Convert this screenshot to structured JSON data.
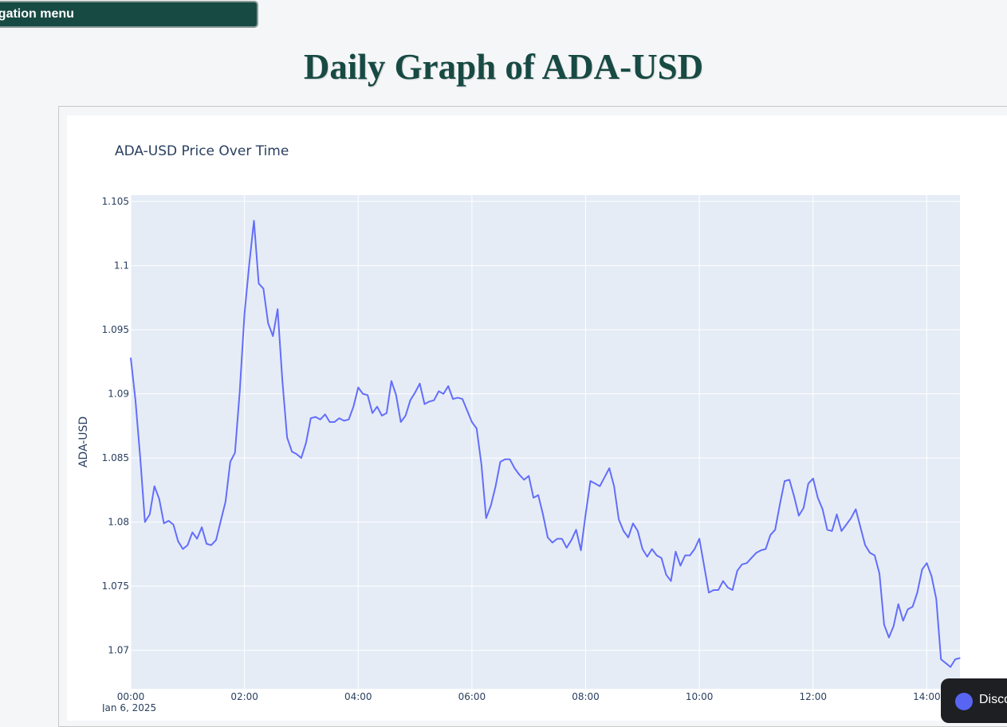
{
  "nav": {
    "label": "Navigation menu"
  },
  "page": {
    "title": "Daily Graph of ADA-USD"
  },
  "discord": {
    "label": "Discord"
  },
  "colors": {
    "line": "#636efa",
    "plot_bg": "#e5ecf6",
    "title": "#174a43"
  },
  "chart_data": {
    "type": "line",
    "title": "ADA-USD Price Over Time",
    "xlabel": "",
    "ylabel": "ADA-USD",
    "x_tick_labels": [
      "00:00",
      "02:00",
      "04:00",
      "06:00",
      "08:00",
      "10:00",
      "12:00",
      "14:00"
    ],
    "x_tick_sublabel": "Jan 6, 2025",
    "x_range_minutes": [
      0,
      875
    ],
    "y_ticks": [
      "1.07",
      "1.075",
      "1.08",
      "1.085",
      "1.09",
      "1.095",
      "1.1",
      "1.105"
    ],
    "ylim": [
      1.067,
      1.1055
    ],
    "grid": true,
    "series": [
      {
        "x": [
          "00:00",
          "00:05",
          "00:10",
          "00:15",
          "00:20",
          "00:25",
          "00:30",
          "00:35",
          "00:40",
          "00:45",
          "00:50",
          "00:55",
          "01:00",
          "01:05",
          "01:10",
          "01:15",
          "01:20",
          "01:25",
          "01:30",
          "01:35",
          "01:40",
          "01:45",
          "01:50",
          "01:55",
          "02:00",
          "02:05",
          "02:10",
          "02:15",
          "02:20",
          "02:25",
          "02:30",
          "02:35",
          "02:40",
          "02:45",
          "02:50",
          "02:55",
          "03:00",
          "03:05",
          "03:10",
          "03:15",
          "03:20",
          "03:25",
          "03:30",
          "03:35",
          "03:40",
          "03:45",
          "03:50",
          "03:55",
          "04:00",
          "04:05",
          "04:10",
          "04:15",
          "04:20",
          "04:25",
          "04:30",
          "04:35",
          "04:40",
          "04:45",
          "04:50",
          "04:55",
          "05:00",
          "05:05",
          "05:10",
          "05:15",
          "05:20",
          "05:25",
          "05:30",
          "05:35",
          "05:40",
          "05:45",
          "05:50",
          "05:55",
          "06:00",
          "06:05",
          "06:10",
          "06:15",
          "06:20",
          "06:25",
          "06:30",
          "06:35",
          "06:40",
          "06:45",
          "06:50",
          "06:55",
          "07:00",
          "07:05",
          "07:10",
          "07:15",
          "07:20",
          "07:25",
          "07:30",
          "07:35",
          "07:40",
          "07:45",
          "07:50",
          "07:55",
          "08:00",
          "08:05",
          "08:10",
          "08:15",
          "08:20",
          "08:25",
          "08:30",
          "08:35",
          "08:40",
          "08:45",
          "08:50",
          "08:55",
          "09:00",
          "09:05",
          "09:10",
          "09:15",
          "09:20",
          "09:25",
          "09:30",
          "09:35",
          "09:40",
          "09:45",
          "09:50",
          "09:55",
          "10:00",
          "10:05",
          "10:10",
          "10:15",
          "10:20",
          "10:25",
          "10:30",
          "10:35",
          "10:40",
          "10:45",
          "10:50",
          "10:55",
          "11:00",
          "11:05",
          "11:10",
          "11:15",
          "11:20",
          "11:25",
          "11:30",
          "11:35",
          "11:40",
          "11:45",
          "11:50",
          "11:55",
          "12:00",
          "12:05",
          "12:10",
          "12:15",
          "12:20",
          "12:25",
          "12:30",
          "12:35",
          "12:40",
          "12:45",
          "12:50",
          "12:55",
          "13:00",
          "13:05",
          "13:10",
          "13:15",
          "13:20",
          "13:25",
          "13:30",
          "13:35",
          "13:40",
          "13:45",
          "13:50",
          "13:55",
          "14:00",
          "14:05",
          "14:10",
          "14:15",
          "14:20",
          "14:25",
          "14:30",
          "14:35"
        ],
        "y": [
          1.0928,
          1.0895,
          1.085,
          1.08,
          1.0806,
          1.0828,
          1.0818,
          1.0799,
          1.0801,
          1.0798,
          1.0785,
          1.0779,
          1.0782,
          1.0792,
          1.0787,
          1.0796,
          1.0783,
          1.0782,
          1.0786,
          1.0801,
          1.0816,
          1.0847,
          1.0854,
          1.0902,
          1.0962,
          1.1001,
          1.1035,
          1.0986,
          1.0982,
          1.0955,
          1.0945,
          1.0966,
          1.091,
          1.0866,
          1.0855,
          1.0853,
          1.085,
          1.0862,
          1.0881,
          1.0882,
          1.088,
          1.0884,
          1.0878,
          1.0878,
          1.0881,
          1.0879,
          1.088,
          1.089,
          1.0905,
          1.09,
          1.0899,
          1.0885,
          1.089,
          1.0883,
          1.0885,
          1.091,
          1.0899,
          1.0878,
          1.0883,
          1.0895,
          1.0901,
          1.0908,
          1.0892,
          1.0894,
          1.0895,
          1.0902,
          1.09,
          1.0906,
          1.0896,
          1.0897,
          1.0896,
          1.0887,
          1.0878,
          1.0873,
          1.0845,
          1.0803,
          1.0813,
          1.0828,
          1.0847,
          1.0849,
          1.0849,
          1.0842,
          1.0837,
          1.0833,
          1.0836,
          1.0819,
          1.0821,
          1.0806,
          1.0788,
          1.0784,
          1.0787,
          1.0787,
          1.078,
          1.0786,
          1.0794,
          1.0778,
          1.0806,
          1.0832,
          1.083,
          1.0828,
          1.0835,
          1.0842,
          1.0828,
          1.0802,
          1.0793,
          1.0788,
          1.0799,
          1.0793,
          1.0779,
          1.0773,
          1.0779,
          1.0774,
          1.0772,
          1.0759,
          1.0754,
          1.0777,
          1.0766,
          1.0774,
          1.0774,
          1.0779,
          1.0787,
          1.0766,
          1.0745,
          1.0747,
          1.0747,
          1.0754,
          1.0749,
          1.0747,
          1.0762,
          1.0767,
          1.0768,
          1.0772,
          1.0776,
          1.0778,
          1.0779,
          1.079,
          1.0794,
          1.0814,
          1.0832,
          1.0833,
          1.082,
          1.0805,
          1.0811,
          1.083,
          1.0834,
          1.0819,
          1.081,
          1.0794,
          1.0793,
          1.0806,
          1.0793,
          1.0798,
          1.0803,
          1.081,
          1.0796,
          1.0782,
          1.0776,
          1.0774,
          1.076,
          1.072,
          1.071,
          1.0719,
          1.0736,
          1.0723,
          1.0732,
          1.0734,
          1.0745,
          1.0763,
          1.0768,
          1.0758,
          1.074,
          1.0693,
          1.069,
          1.0687,
          1.0693,
          1.0694
        ]
      }
    ]
  }
}
